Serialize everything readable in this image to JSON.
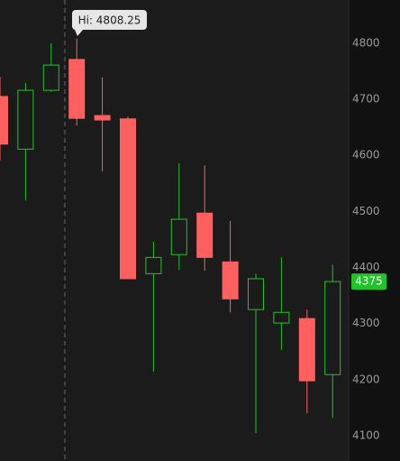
{
  "chart_data": {
    "type": "candlestick",
    "annotation": "Hi: 4808.25",
    "open": [
      4705,
      4611,
      4716,
      4771,
      4671,
      4665,
      4389,
      4423,
      4497,
      4410,
      4325,
      4301,
      4309,
      4209
    ],
    "high": [
      4740,
      4729,
      4800,
      4808.25,
      4739,
      4669,
      4446,
      4586,
      4582,
      4483,
      4389,
      4418,
      4325,
      4405
    ],
    "low": [
      4591,
      4520,
      4713,
      4653,
      4571,
      4380,
      4214,
      4396,
      4394,
      4320,
      4105,
      4253,
      4140,
      4132
    ],
    "close": [
      4620,
      4716,
      4761,
      4666,
      4663,
      4380,
      4418,
      4486,
      4418,
      4344,
      4380,
      4320,
      4198,
      4375
    ],
    "up_color": "#22c22a",
    "down_color": "#ff5f5f",
    "ylim": [
      4055,
      4877
    ],
    "yticks": [
      4100,
      4200,
      4300,
      4400,
      4500,
      4600,
      4700,
      4800
    ]
  }
}
